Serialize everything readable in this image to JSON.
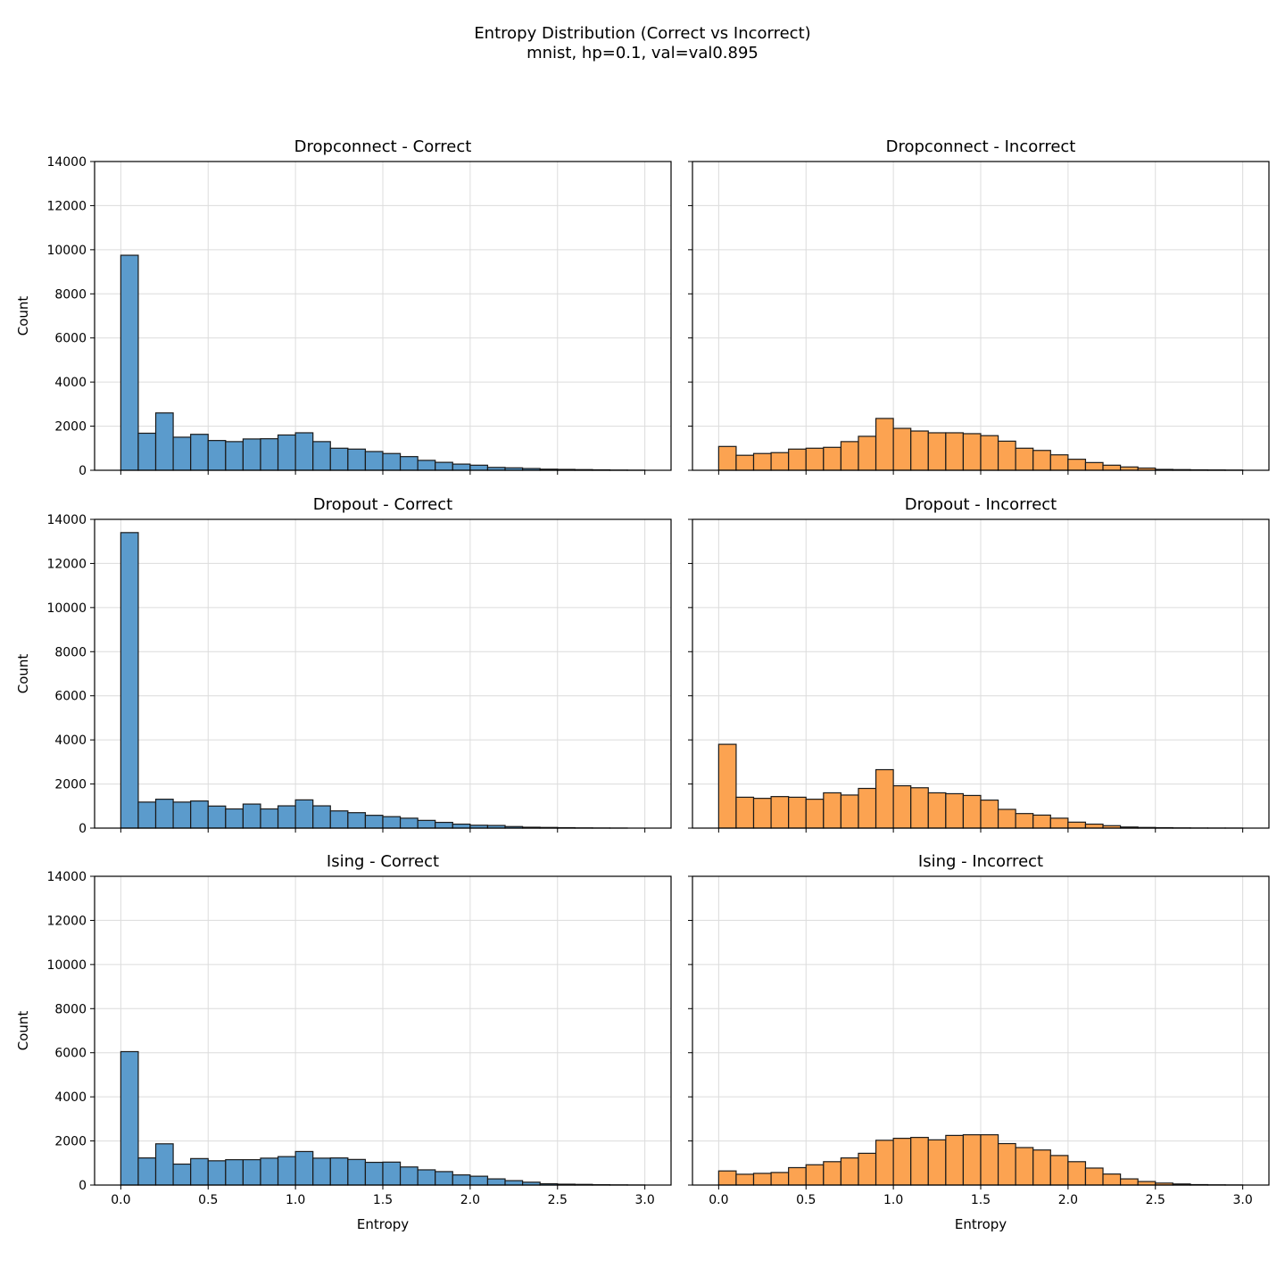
{
  "figure": {
    "title": "Entropy Distribution (Correct vs Incorrect)",
    "subtitle": "mnist, hp=0.1, val=val0.895"
  },
  "colors": {
    "correct": "#5b9bcc",
    "incorrect": "#fca351",
    "edge": "#1a1a1a",
    "grid": "#dcdcdc"
  },
  "chart_data": [
    {
      "type": "bar",
      "title": "Dropconnect - Correct",
      "xlabel": "",
      "ylabel": "Count",
      "bin_start": 0.0,
      "bin_width": 0.1,
      "xlim": [
        -0.15,
        3.15
      ],
      "ylim": [
        0,
        14000
      ],
      "xticks": [
        0.0,
        0.5,
        1.0,
        1.5,
        2.0,
        2.5,
        3.0
      ],
      "yticks": [
        0,
        2000,
        4000,
        6000,
        8000,
        10000,
        12000,
        14000
      ],
      "grid": true,
      "color_key": "correct",
      "values": [
        9750,
        1680,
        2600,
        1500,
        1630,
        1350,
        1300,
        1420,
        1430,
        1600,
        1700,
        1300,
        1000,
        960,
        850,
        760,
        620,
        450,
        360,
        280,
        230,
        130,
        110,
        80,
        50,
        40,
        30,
        20,
        10,
        5,
        0
      ]
    },
    {
      "type": "bar",
      "title": "Dropconnect - Incorrect",
      "xlabel": "",
      "ylabel": "",
      "bin_start": 0.0,
      "bin_width": 0.1,
      "xlim": [
        -0.15,
        3.15
      ],
      "ylim": [
        0,
        14000
      ],
      "xticks": [
        0.0,
        0.5,
        1.0,
        1.5,
        2.0,
        2.5,
        3.0
      ],
      "yticks": [
        0,
        2000,
        4000,
        6000,
        8000,
        10000,
        12000,
        14000
      ],
      "grid": true,
      "color_key": "incorrect",
      "values": [
        1080,
        680,
        760,
        800,
        960,
        1000,
        1040,
        1300,
        1540,
        2350,
        1900,
        1780,
        1700,
        1700,
        1660,
        1570,
        1320,
        1000,
        900,
        700,
        500,
        350,
        230,
        150,
        100,
        40,
        30,
        20,
        15,
        10
      ]
    },
    {
      "type": "bar",
      "title": "Dropout - Correct",
      "xlabel": "",
      "ylabel": "Count",
      "bin_start": 0.0,
      "bin_width": 0.1,
      "xlim": [
        -0.15,
        3.15
      ],
      "ylim": [
        0,
        14000
      ],
      "xticks": [
        0.0,
        0.5,
        1.0,
        1.5,
        2.0,
        2.5,
        3.0
      ],
      "yticks": [
        0,
        2000,
        4000,
        6000,
        8000,
        10000,
        12000,
        14000
      ],
      "grid": true,
      "color_key": "correct",
      "values": [
        13400,
        1180,
        1310,
        1180,
        1230,
        1000,
        870,
        1090,
        870,
        1010,
        1280,
        1010,
        780,
        700,
        580,
        520,
        450,
        350,
        260,
        180,
        130,
        120,
        70,
        40,
        30,
        20,
        10,
        5,
        2,
        0
      ]
    },
    {
      "type": "bar",
      "title": "Dropout - Incorrect",
      "xlabel": "",
      "ylabel": "",
      "bin_start": 0.0,
      "bin_width": 0.1,
      "xlim": [
        -0.15,
        3.15
      ],
      "ylim": [
        0,
        14000
      ],
      "xticks": [
        0.0,
        0.5,
        1.0,
        1.5,
        2.0,
        2.5,
        3.0
      ],
      "yticks": [
        0,
        2000,
        4000,
        6000,
        8000,
        10000,
        12000,
        14000
      ],
      "grid": true,
      "color_key": "incorrect",
      "values": [
        3800,
        1400,
        1350,
        1430,
        1400,
        1310,
        1600,
        1500,
        1800,
        2650,
        1920,
        1830,
        1600,
        1560,
        1480,
        1270,
        850,
        660,
        590,
        450,
        270,
        180,
        110,
        50,
        30,
        20,
        10,
        5,
        3,
        2
      ]
    },
    {
      "type": "bar",
      "title": "Ising - Correct",
      "xlabel": "Entropy",
      "ylabel": "Count",
      "bin_start": 0.0,
      "bin_width": 0.1,
      "xlim": [
        -0.15,
        3.15
      ],
      "ylim": [
        0,
        14000
      ],
      "xticks": [
        0.0,
        0.5,
        1.0,
        1.5,
        2.0,
        2.5,
        3.0
      ],
      "yticks": [
        0,
        2000,
        4000,
        6000,
        8000,
        10000,
        12000,
        14000
      ],
      "grid": true,
      "color_key": "correct",
      "values": [
        6050,
        1230,
        1870,
        950,
        1200,
        1100,
        1150,
        1150,
        1220,
        1290,
        1520,
        1220,
        1230,
        1160,
        1030,
        1040,
        820,
        690,
        610,
        460,
        400,
        280,
        200,
        130,
        60,
        40,
        30,
        15,
        8,
        3
      ]
    },
    {
      "type": "bar",
      "title": "Ising - Incorrect",
      "xlabel": "Entropy",
      "ylabel": "",
      "bin_start": 0.0,
      "bin_width": 0.1,
      "xlim": [
        -0.15,
        3.15
      ],
      "ylim": [
        0,
        14000
      ],
      "xticks": [
        0.0,
        0.5,
        1.0,
        1.5,
        2.0,
        2.5,
        3.0
      ],
      "yticks": [
        0,
        2000,
        4000,
        6000,
        8000,
        10000,
        12000,
        14000
      ],
      "grid": true,
      "color_key": "incorrect",
      "values": [
        640,
        490,
        530,
        570,
        790,
        920,
        1060,
        1230,
        1440,
        2030,
        2120,
        2160,
        2050,
        2250,
        2280,
        2280,
        1880,
        1700,
        1590,
        1340,
        1060,
        770,
        500,
        280,
        160,
        90,
        50,
        20,
        10,
        5
      ]
    }
  ]
}
